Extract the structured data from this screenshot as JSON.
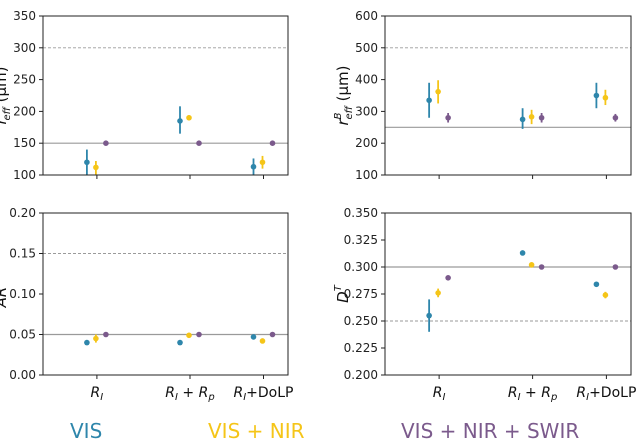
{
  "colors": {
    "vis": "#2E86AB",
    "vis_nir": "#F5C518",
    "vis_nir_swir": "#7B5A8C",
    "reference_solid": "#9a9a9a",
    "reference_dashed": "#9a9a9a"
  },
  "legend": [
    {
      "label": "VIS",
      "color_key": "vis"
    },
    {
      "label": "VIS + NIR",
      "color_key": "vis_nir"
    },
    {
      "label": "VIS + NIR + SWIR",
      "color_key": "vis_nir_swir"
    }
  ],
  "chart_data": [
    {
      "type": "scatter",
      "panel": "top-left",
      "ylabel": {
        "main": "r",
        "sup": "T",
        "sub": "eff",
        "unit": " (µm)"
      },
      "ylim": [
        100,
        350
      ],
      "yticks": [
        100,
        150,
        200,
        250,
        300,
        350
      ],
      "ytick_labels": [
        "100",
        "150",
        "200",
        "250",
        "300",
        "350"
      ],
      "categories": [
        "R_I",
        "R_I + R_p",
        "R_I+DoLP"
      ],
      "show_xticklabels": false,
      "reference_lines": [
        {
          "y": 150,
          "style": "solid"
        },
        {
          "y": 300,
          "style": "dashed"
        }
      ],
      "series": [
        {
          "name": "VIS",
          "color_key": "vis",
          "values": [
            120,
            185,
            113
          ],
          "lower": [
            100,
            165,
            100
          ],
          "upper": [
            140,
            208,
            126
          ]
        },
        {
          "name": "VIS + NIR",
          "color_key": "vis_nir",
          "values": [
            112,
            190,
            120
          ],
          "lower": [
            100,
            186,
            110
          ],
          "upper": [
            122,
            194,
            130
          ]
        },
        {
          "name": "VIS + NIR + SWIR",
          "color_key": "vis_nir_swir",
          "values": [
            150,
            150,
            150
          ],
          "lower": [
            150,
            150,
            150
          ],
          "upper": [
            150,
            150,
            150
          ]
        }
      ]
    },
    {
      "type": "scatter",
      "panel": "top-right",
      "ylabel": {
        "main": "r",
        "sup": "B",
        "sub": "eff",
        "unit": " (µm)"
      },
      "ylim": [
        100,
        600
      ],
      "yticks": [
        100,
        200,
        300,
        400,
        500,
        600
      ],
      "ytick_labels": [
        "100",
        "200",
        "300",
        "400",
        "500",
        "600"
      ],
      "categories": [
        "R_I",
        "R_I + R_p",
        "R_I+DoLP"
      ],
      "show_xticklabels": false,
      "reference_lines": [
        {
          "y": 250,
          "style": "solid"
        },
        {
          "y": 500,
          "style": "dashed"
        }
      ],
      "series": [
        {
          "name": "VIS",
          "color_key": "vis",
          "values": [
            335,
            275,
            350
          ],
          "lower": [
            280,
            245,
            310
          ],
          "upper": [
            390,
            310,
            390
          ]
        },
        {
          "name": "VIS + NIR",
          "color_key": "vis_nir",
          "values": [
            362,
            283,
            343
          ],
          "lower": [
            325,
            260,
            320
          ],
          "upper": [
            398,
            305,
            368
          ]
        },
        {
          "name": "VIS + NIR + SWIR",
          "color_key": "vis_nir_swir",
          "values": [
            280,
            280,
            280
          ],
          "lower": [
            265,
            265,
            268
          ],
          "upper": [
            295,
            295,
            292
          ]
        }
      ]
    },
    {
      "type": "scatter",
      "panel": "bottom-left",
      "ylabel": {
        "main": "AR",
        "sup": "T",
        "sub": "",
        "unit": ""
      },
      "ylim": [
        0,
        0.2
      ],
      "yticks": [
        0,
        0.05,
        0.1,
        0.15,
        0.2
      ],
      "ytick_labels": [
        "0.00",
        "0.05",
        "0.10",
        "0.15",
        "0.20"
      ],
      "categories": [
        "R_I",
        "R_I + R_p",
        "R_I+DoLP"
      ],
      "show_xticklabels": true,
      "reference_lines": [
        {
          "y": 0.05,
          "style": "solid"
        },
        {
          "y": 0.15,
          "style": "dashed"
        }
      ],
      "series": [
        {
          "name": "VIS",
          "color_key": "vis",
          "values": [
            0.04,
            0.04,
            0.047
          ],
          "lower": [
            0.037,
            0.039,
            0.044
          ],
          "upper": [
            0.043,
            0.041,
            0.05
          ]
        },
        {
          "name": "VIS + NIR",
          "color_key": "vis_nir",
          "values": [
            0.045,
            0.049,
            0.042
          ],
          "lower": [
            0.04,
            0.047,
            0.04
          ],
          "upper": [
            0.05,
            0.051,
            0.044
          ]
        },
        {
          "name": "VIS + NIR + SWIR",
          "color_key": "vis_nir_swir",
          "values": [
            0.05,
            0.05,
            0.05
          ],
          "lower": [
            0.05,
            0.05,
            0.05
          ],
          "upper": [
            0.05,
            0.05,
            0.05
          ]
        }
      ]
    },
    {
      "type": "scatter",
      "panel": "bottom-right",
      "ylabel": {
        "main": "D",
        "sup": "T",
        "sub": "",
        "unit": ""
      },
      "ylim": [
        0.2,
        0.35
      ],
      "yticks": [
        0.2,
        0.225,
        0.25,
        0.275,
        0.3,
        0.325,
        0.35
      ],
      "ytick_labels": [
        "0.200",
        "0.225",
        "0.250",
        "0.275",
        "0.300",
        "0.325",
        "0.350"
      ],
      "categories": [
        "R_I",
        "R_I + R_p",
        "R_I+DoLP"
      ],
      "show_xticklabels": true,
      "reference_lines": [
        {
          "y": 0.3,
          "style": "solid"
        },
        {
          "y": 0.25,
          "style": "dashed"
        }
      ],
      "series": [
        {
          "name": "VIS",
          "color_key": "vis",
          "values": [
            0.255,
            0.313,
            0.284
          ],
          "lower": [
            0.24,
            0.313,
            0.284
          ],
          "upper": [
            0.27,
            0.313,
            0.284
          ]
        },
        {
          "name": "VIS + NIR",
          "color_key": "vis_nir",
          "values": [
            0.276,
            0.302,
            0.274
          ],
          "lower": [
            0.272,
            0.302,
            0.271
          ],
          "upper": [
            0.28,
            0.302,
            0.277
          ]
        },
        {
          "name": "VIS + NIR + SWIR",
          "color_key": "vis_nir_swir",
          "values": [
            0.29,
            0.3,
            0.3
          ],
          "lower": [
            0.29,
            0.3,
            0.3
          ],
          "upper": [
            0.29,
            0.3,
            0.3
          ]
        }
      ]
    }
  ]
}
